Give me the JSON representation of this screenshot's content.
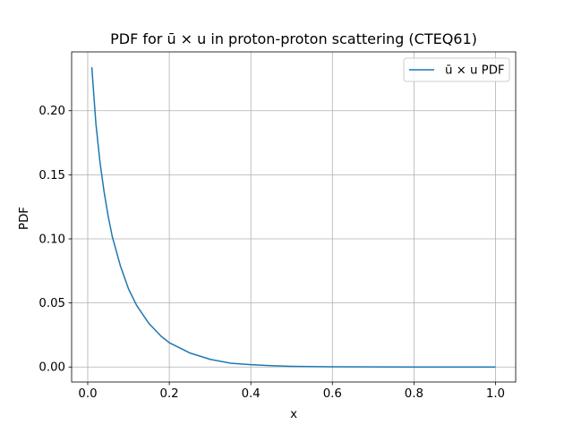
{
  "chart_data": {
    "type": "line",
    "title": "PDF for ū × u in proton-proton scattering (CTEQ61)",
    "xlabel": "x",
    "ylabel": "PDF",
    "xlim": [
      -0.0395,
      1.0495
    ],
    "ylim": [
      -0.0117,
      0.2459
    ],
    "x_ticks": [
      0.0,
      0.2,
      0.4,
      0.6,
      0.8,
      1.0
    ],
    "x_tick_labels": [
      "0.0",
      "0.2",
      "0.4",
      "0.6",
      "0.8",
      "1.0"
    ],
    "y_ticks": [
      0.0,
      0.05,
      0.1,
      0.15,
      0.2
    ],
    "y_tick_labels": [
      "0.00",
      "0.05",
      "0.10",
      "0.15",
      "0.20"
    ],
    "grid": true,
    "legend_position": "top-right",
    "series": [
      {
        "name": "ū × u PDF",
        "color": "#1f77b4",
        "x": [
          0.01,
          0.02,
          0.03,
          0.04,
          0.05,
          0.06,
          0.08,
          0.1,
          0.12,
          0.15,
          0.18,
          0.2,
          0.25,
          0.3,
          0.35,
          0.4,
          0.45,
          0.5,
          0.6,
          0.7,
          0.8,
          0.9,
          1.0
        ],
        "y": [
          0.234,
          0.19,
          0.16,
          0.137,
          0.118,
          0.102,
          0.079,
          0.061,
          0.048,
          0.034,
          0.024,
          0.019,
          0.011,
          0.006,
          0.003,
          0.0018,
          0.001,
          0.0005,
          0.0002,
          0.0001,
          0.0,
          0.0,
          0.0
        ]
      }
    ]
  }
}
